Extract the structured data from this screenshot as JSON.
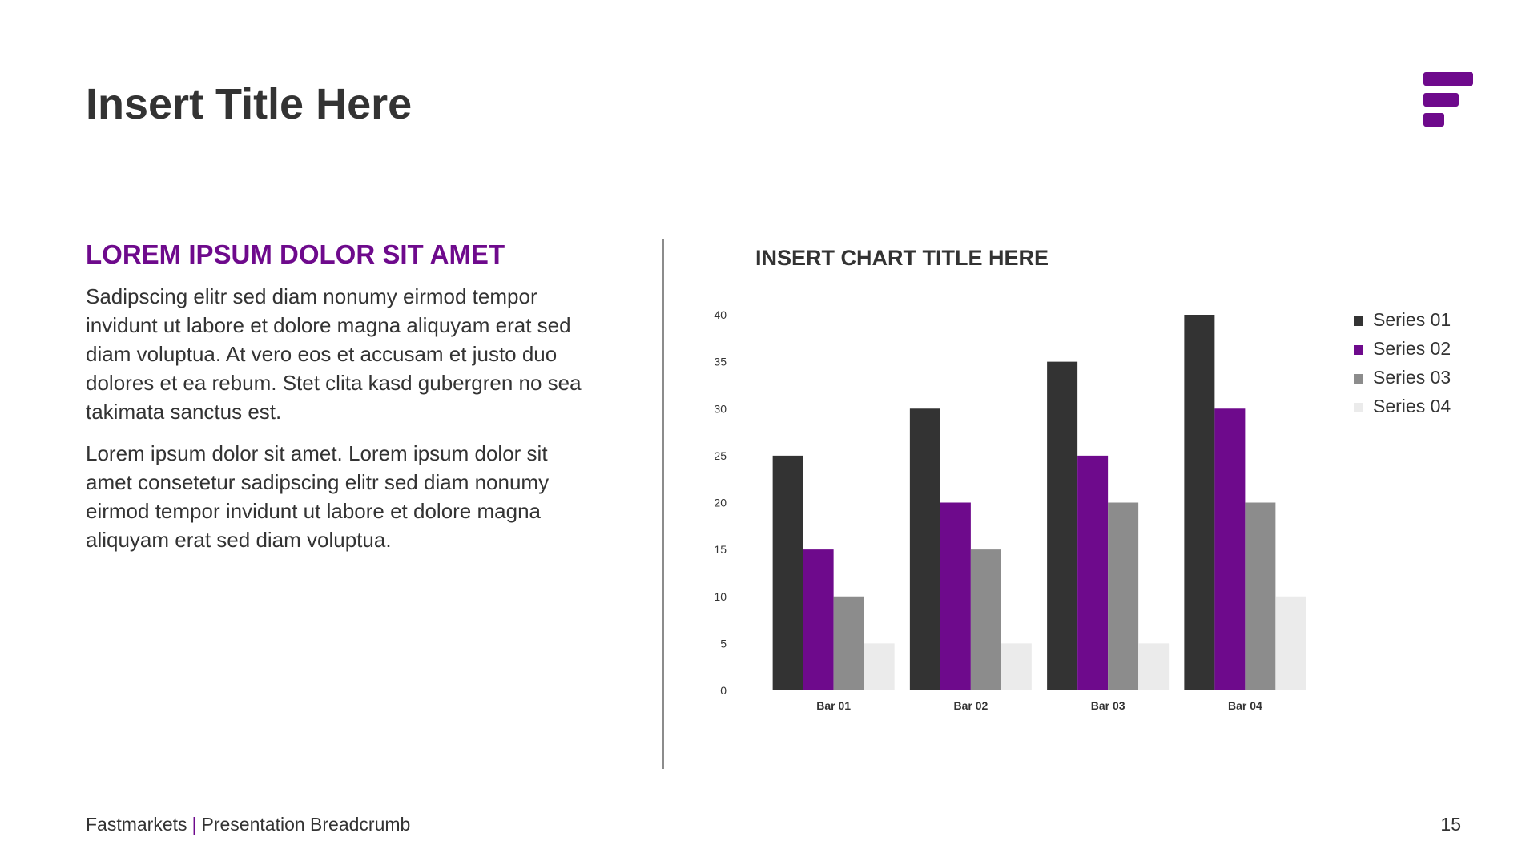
{
  "slide": {
    "title": "Insert Title Here"
  },
  "brand": {
    "accent_color": "#6e0a8c",
    "logo_icon": "fastmarkets-logo-icon"
  },
  "left_panel": {
    "heading": "LOREM IPSUM DOLOR SIT AMET",
    "paragraph_1": "Sadipscing elitr sed diam nonumy eirmod tempor invidunt ut labore et dolore magna aliquyam erat sed diam voluptua. At vero eos et accusam et justo duo dolores et ea rebum. Stet clita kasd gubergren no sea takimata sanctus est.",
    "paragraph_2": "Lorem ipsum dolor sit amet. Lorem ipsum dolor sit amet consetetur sadipscing elitr sed diam nonumy eirmod tempor invidunt ut labore et dolore magna aliquyam erat sed diam voluptua."
  },
  "chart_data": {
    "type": "bar",
    "title": "INSERT CHART TITLE HERE",
    "categories": [
      "Bar 01",
      "Bar 02",
      "Bar 03",
      "Bar 04"
    ],
    "series": [
      {
        "name": "Series 01",
        "color": "#333333",
        "values": [
          25,
          30,
          35,
          40
        ]
      },
      {
        "name": "Series 02",
        "color": "#6e0a8c",
        "values": [
          15,
          20,
          25,
          30
        ]
      },
      {
        "name": "Series 03",
        "color": "#8c8c8c",
        "values": [
          10,
          15,
          20,
          20
        ]
      },
      {
        "name": "Series 04",
        "color": "#ebebeb",
        "values": [
          5,
          5,
          5,
          10
        ]
      }
    ],
    "ylim": [
      0,
      40
    ],
    "yticks": [
      0,
      5,
      10,
      15,
      20,
      25,
      30,
      35,
      40
    ],
    "xlabel": "",
    "ylabel": "",
    "grid": false,
    "legend_position": "top-right"
  },
  "footer": {
    "company": "Fastmarkets",
    "separator": "|",
    "breadcrumb": "Presentation Breadcrumb",
    "page_number": "15"
  }
}
